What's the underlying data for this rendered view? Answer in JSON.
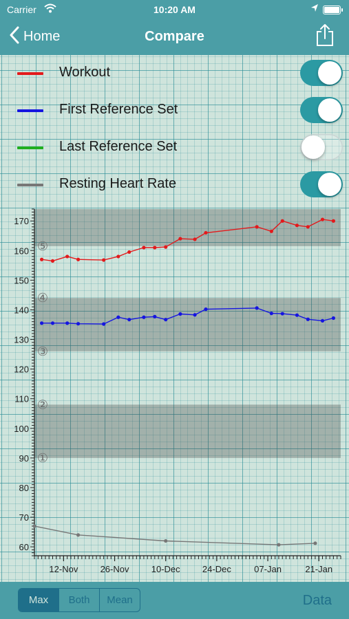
{
  "status": {
    "carrier": "Carrier",
    "time": "10:20 AM"
  },
  "nav": {
    "back_label": "Home",
    "title": "Compare"
  },
  "legend": [
    {
      "label": "Workout",
      "color": "#e31a1c",
      "on": true
    },
    {
      "label": "First Reference Set",
      "color": "#1515e0",
      "on": true
    },
    {
      "label": "Last Reference Set",
      "color": "#1fae1f",
      "on": false
    },
    {
      "label": "Resting Heart Rate",
      "color": "#777777",
      "on": true
    }
  ],
  "bottom": {
    "segments": [
      {
        "label": "Max",
        "selected": true
      },
      {
        "label": "Both",
        "selected": false
      },
      {
        "label": "Mean",
        "selected": false
      }
    ],
    "data_label": "Data"
  },
  "chart_data": {
    "type": "line",
    "title": "",
    "xlabel": "",
    "ylabel": "",
    "ylim": [
      57,
      174
    ],
    "xlim": [
      "2017-11-04",
      "2018-01-27"
    ],
    "y_ticks": [
      60,
      70,
      80,
      90,
      100,
      110,
      120,
      130,
      140,
      150,
      160,
      170
    ],
    "x_ticks": [
      "12-Nov",
      "26-Nov",
      "10-Dec",
      "24-Dec",
      "07-Jan",
      "21-Jan"
    ],
    "x_tick_dates": [
      "2017-11-12",
      "2017-11-26",
      "2017-12-10",
      "2017-12-24",
      "2018-01-07",
      "2018-01-21"
    ],
    "grid": false,
    "zones": [
      {
        "label": "①",
        "range": [
          90,
          108
        ]
      },
      {
        "label": "②",
        "range": [
          108,
          126
        ]
      },
      {
        "label": "③",
        "range": [
          126,
          144
        ]
      },
      {
        "label": "④",
        "range": [
          144,
          161.5
        ]
      },
      {
        "label": "⑤",
        "range": [
          161.5,
          174
        ]
      }
    ],
    "series": [
      {
        "name": "Workout",
        "color": "#e31a1c",
        "x": [
          "2017-11-06",
          "2017-11-09",
          "2017-11-13",
          "2017-11-16",
          "2017-11-23",
          "2017-11-27",
          "2017-11-30",
          "2017-12-04",
          "2017-12-07",
          "2017-12-10",
          "2017-12-14",
          "2017-12-18",
          "2017-12-21",
          "2018-01-04",
          "2018-01-08",
          "2018-01-11",
          "2018-01-15",
          "2018-01-18",
          "2018-01-22",
          "2018-01-25"
        ],
        "values": [
          157,
          156.5,
          158,
          157,
          156.8,
          158,
          159.5,
          161,
          161,
          161.2,
          164,
          163.8,
          166,
          168,
          166.5,
          170,
          168.5,
          168,
          170.5,
          170
        ]
      },
      {
        "name": "First Reference Set",
        "color": "#1515e0",
        "x": [
          "2017-11-06",
          "2017-11-09",
          "2017-11-13",
          "2017-11-16",
          "2017-11-23",
          "2017-11-27",
          "2017-11-30",
          "2017-12-04",
          "2017-12-07",
          "2017-12-10",
          "2017-12-14",
          "2017-12-18",
          "2017-12-21",
          "2018-01-04",
          "2018-01-08",
          "2018-01-11",
          "2018-01-15",
          "2018-01-18",
          "2018-01-22",
          "2018-01-25"
        ],
        "values": [
          135.5,
          135.5,
          135.5,
          135.3,
          135.2,
          137.5,
          136.7,
          137.5,
          137.7,
          136.7,
          138.6,
          138.3,
          140.2,
          140.6,
          138.8,
          138.7,
          138.2,
          136.8,
          136.3,
          137.2
        ]
      },
      {
        "name": "Resting Heart Rate",
        "color": "#777777",
        "x": [
          "2017-11-04",
          "2017-11-16",
          "2017-12-10",
          "2018-01-10",
          "2018-01-20"
        ],
        "values": [
          67,
          64,
          62,
          60.7,
          61.2
        ]
      }
    ]
  }
}
